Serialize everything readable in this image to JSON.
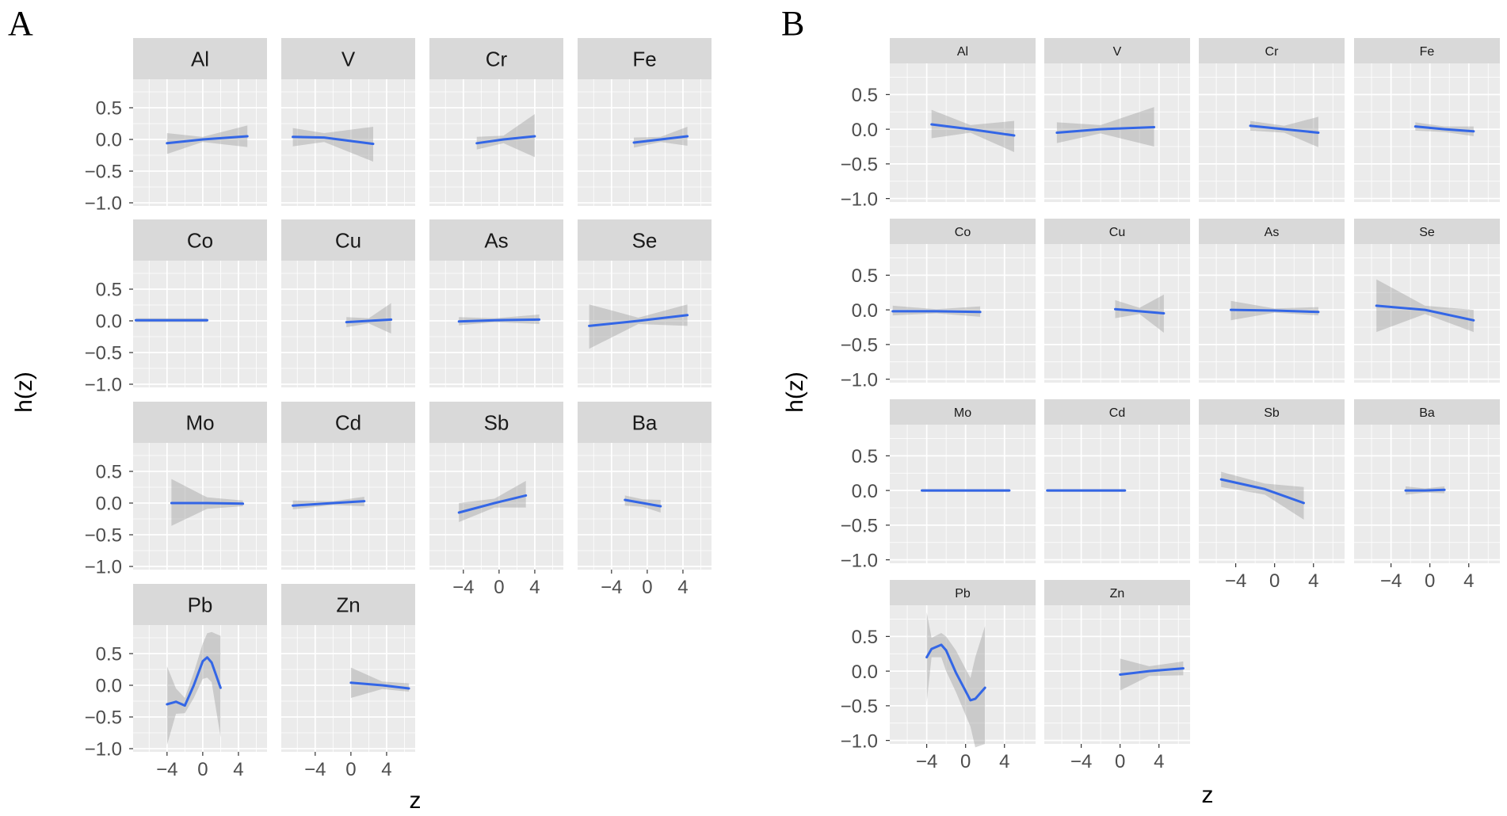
{
  "figure": {
    "panel_labels": [
      "A",
      "B"
    ],
    "y_axis_title": "h(z)",
    "x_axis_title": "z"
  },
  "chart_data": [
    {
      "type": "line",
      "panel": "A",
      "title": "",
      "xlabel": "z",
      "ylabel": "h(z)",
      "xlim": [
        -7.8,
        7.2
      ],
      "ylim": [
        -1.05,
        0.95
      ],
      "x_ticks": [
        -4,
        0,
        4
      ],
      "x_tick_labels": [
        "−4",
        "0",
        "4"
      ],
      "y_ticks": [
        0.5,
        0.0,
        -0.5,
        -1.0
      ],
      "y_tick_labels": [
        "0.5",
        "0.0",
        "−0.5",
        "−1.0"
      ],
      "grid": true,
      "facets": [
        {
          "label": "Al",
          "x": [
            -4.0,
            0.0,
            5.0
          ],
          "y": [
            -0.06,
            0.0,
            0.05
          ],
          "lower": [
            -0.23,
            -0.04,
            -0.12
          ],
          "upper": [
            0.1,
            0.04,
            0.22
          ]
        },
        {
          "label": "V",
          "x": [
            -6.5,
            -3.0,
            2.5
          ],
          "y": [
            0.04,
            0.03,
            -0.07
          ],
          "lower": [
            -0.11,
            -0.04,
            -0.35
          ],
          "upper": [
            0.18,
            0.1,
            0.2
          ]
        },
        {
          "label": "Cr",
          "x": [
            -2.5,
            0.5,
            4.0
          ],
          "y": [
            -0.06,
            0.0,
            0.05
          ],
          "lower": [
            -0.16,
            -0.06,
            -0.28
          ],
          "upper": [
            0.04,
            0.06,
            0.4
          ]
        },
        {
          "label": "Fe",
          "x": [
            -1.5,
            1.5,
            4.5
          ],
          "y": [
            -0.05,
            0.0,
            0.05
          ],
          "lower": [
            -0.13,
            -0.04,
            -0.1
          ],
          "upper": [
            0.03,
            0.04,
            0.2
          ]
        },
        {
          "label": "Co",
          "x": [
            -7.5,
            -3.0,
            0.5
          ],
          "y": [
            0.01,
            0.01,
            0.01
          ],
          "lower": [
            -0.02,
            -0.02,
            -0.02
          ],
          "upper": [
            0.04,
            0.04,
            0.04
          ]
        },
        {
          "label": "Cu",
          "x": [
            -0.5,
            2.0,
            4.5
          ],
          "y": [
            -0.02,
            0.0,
            0.02
          ],
          "lower": [
            -0.1,
            -0.04,
            -0.2
          ],
          "upper": [
            0.06,
            0.04,
            0.28
          ]
        },
        {
          "label": "As",
          "x": [
            -4.5,
            -0.5,
            4.5
          ],
          "y": [
            -0.01,
            0.01,
            0.02
          ],
          "lower": [
            -0.07,
            -0.02,
            -0.05
          ],
          "upper": [
            0.06,
            0.04,
            0.1
          ]
        },
        {
          "label": "Se",
          "x": [
            -6.5,
            -1.0,
            4.5
          ],
          "y": [
            -0.08,
            0.0,
            0.09
          ],
          "lower": [
            -0.44,
            -0.05,
            -0.08
          ],
          "upper": [
            0.26,
            0.05,
            0.26
          ]
        },
        {
          "label": "Mo",
          "x": [
            -3.5,
            0.5,
            4.5
          ],
          "y": [
            0.0,
            0.0,
            -0.01
          ],
          "lower": [
            -0.36,
            -0.09,
            -0.05
          ],
          "upper": [
            0.38,
            0.09,
            0.04
          ]
        },
        {
          "label": "Cd",
          "x": [
            -6.5,
            -2.0,
            1.5
          ],
          "y": [
            -0.04,
            0.0,
            0.03
          ],
          "lower": [
            -0.1,
            -0.03,
            -0.05
          ],
          "upper": [
            0.04,
            0.03,
            0.1
          ]
        },
        {
          "label": "Sb",
          "x": [
            -4.5,
            -0.5,
            3.0
          ],
          "y": [
            -0.15,
            0.0,
            0.12
          ],
          "lower": [
            -0.3,
            -0.07,
            -0.07
          ],
          "upper": [
            0.0,
            0.07,
            0.35
          ]
        },
        {
          "label": "Ba",
          "x": [
            -2.5,
            -0.5,
            1.5
          ],
          "y": [
            0.05,
            0.0,
            -0.05
          ],
          "lower": [
            -0.04,
            -0.06,
            -0.15
          ],
          "upper": [
            0.12,
            0.06,
            0.05
          ]
        },
        {
          "label": "Pb",
          "x": [
            -4.0,
            -3.0,
            -2.0,
            -1.0,
            0.0,
            0.5,
            1.0,
            2.0
          ],
          "y": [
            -0.3,
            -0.26,
            -0.32,
            0.0,
            0.38,
            0.44,
            0.36,
            -0.04
          ],
          "lower": [
            -0.94,
            -0.45,
            -0.44,
            -0.2,
            0.1,
            0.12,
            0.05,
            -0.82
          ],
          "upper": [
            0.3,
            -0.05,
            -0.2,
            0.2,
            0.66,
            0.82,
            0.84,
            0.78
          ]
        },
        {
          "label": "Zn",
          "x": [
            0.0,
            3.5,
            6.5
          ],
          "y": [
            0.04,
            0.0,
            -0.05
          ],
          "lower": [
            -0.2,
            -0.06,
            -0.1
          ],
          "upper": [
            0.28,
            0.06,
            0.03
          ]
        }
      ]
    },
    {
      "type": "line",
      "panel": "B",
      "title": "",
      "xlabel": "z",
      "ylabel": "h(z)",
      "xlim": [
        -7.8,
        7.2
      ],
      "ylim": [
        -1.05,
        0.95
      ],
      "x_ticks": [
        -4,
        0,
        4
      ],
      "x_tick_labels": [
        "−4",
        "0",
        "4"
      ],
      "y_ticks": [
        0.5,
        0.0,
        -0.5,
        -1.0
      ],
      "y_tick_labels": [
        "0.5",
        "0.0",
        "−0.5",
        "−1.0"
      ],
      "grid": true,
      "facets": [
        {
          "label": "Al",
          "x": [
            -3.5,
            0.5,
            5.0
          ],
          "y": [
            0.07,
            0.0,
            -0.09
          ],
          "lower": [
            -0.13,
            -0.05,
            -0.33
          ],
          "upper": [
            0.28,
            0.06,
            0.12
          ]
        },
        {
          "label": "V",
          "x": [
            -6.5,
            -2.0,
            3.5
          ],
          "y": [
            -0.05,
            0.0,
            0.03
          ],
          "lower": [
            -0.2,
            -0.06,
            -0.25
          ],
          "upper": [
            0.1,
            0.06,
            0.32
          ]
        },
        {
          "label": "Cr",
          "x": [
            -2.5,
            1.0,
            4.5
          ],
          "y": [
            0.05,
            0.0,
            -0.05
          ],
          "lower": [
            -0.02,
            -0.05,
            -0.26
          ],
          "upper": [
            0.12,
            0.05,
            0.18
          ]
        },
        {
          "label": "Fe",
          "x": [
            -1.5,
            1.5,
            4.5
          ],
          "y": [
            0.04,
            0.0,
            -0.03
          ],
          "lower": [
            -0.02,
            -0.04,
            -0.1
          ],
          "upper": [
            0.1,
            0.04,
            0.04
          ]
        },
        {
          "label": "Co",
          "x": [
            -7.5,
            -3.0,
            1.5
          ],
          "y": [
            -0.02,
            -0.02,
            -0.03
          ],
          "lower": [
            -0.08,
            -0.05,
            -0.1
          ],
          "upper": [
            0.06,
            0.01,
            0.05
          ]
        },
        {
          "label": "Cu",
          "x": [
            -0.5,
            2.0,
            4.5
          ],
          "y": [
            0.01,
            -0.02,
            -0.05
          ],
          "lower": [
            -0.12,
            -0.06,
            -0.33
          ],
          "upper": [
            0.14,
            0.03,
            0.22
          ]
        },
        {
          "label": "As",
          "x": [
            -4.5,
            0.0,
            4.5
          ],
          "y": [
            0.0,
            -0.01,
            -0.03
          ],
          "lower": [
            -0.15,
            -0.04,
            -0.08
          ],
          "upper": [
            0.13,
            0.02,
            0.04
          ]
        },
        {
          "label": "Se",
          "x": [
            -5.5,
            -0.5,
            4.5
          ],
          "y": [
            0.06,
            0.0,
            -0.15
          ],
          "lower": [
            -0.32,
            -0.06,
            -0.32
          ],
          "upper": [
            0.44,
            0.06,
            0.0
          ]
        },
        {
          "label": "Mo",
          "x": [
            -4.5,
            0.0,
            4.5
          ],
          "y": [
            0.0,
            0.0,
            0.0
          ],
          "lower": [
            -0.02,
            -0.02,
            -0.02
          ],
          "upper": [
            0.02,
            0.02,
            0.02
          ]
        },
        {
          "label": "Cd",
          "x": [
            -7.5,
            -3.0,
            0.5
          ],
          "y": [
            0.0,
            0.0,
            0.0
          ],
          "lower": [
            -0.02,
            -0.02,
            -0.02
          ],
          "upper": [
            0.02,
            0.02,
            0.02
          ]
        },
        {
          "label": "Sb",
          "x": [
            -5.5,
            -1.0,
            3.0
          ],
          "y": [
            0.16,
            0.02,
            -0.18
          ],
          "lower": [
            0.05,
            -0.06,
            -0.42
          ],
          "upper": [
            0.27,
            0.1,
            0.05
          ]
        },
        {
          "label": "Ba",
          "x": [
            -2.5,
            -0.5,
            1.5
          ],
          "y": [
            0.0,
            0.0,
            0.01
          ],
          "lower": [
            -0.06,
            -0.03,
            -0.04
          ],
          "upper": [
            0.06,
            0.03,
            0.06
          ]
        },
        {
          "label": "Pb",
          "x": [
            -4.0,
            -3.5,
            -2.5,
            -2.0,
            -1.0,
            0.5,
            1.0,
            2.0
          ],
          "y": [
            0.2,
            0.32,
            0.38,
            0.3,
            -0.02,
            -0.42,
            -0.4,
            -0.24
          ],
          "lower": [
            -0.45,
            0.2,
            0.2,
            0.0,
            -0.3,
            -0.8,
            -1.1,
            -1.05
          ],
          "upper": [
            0.85,
            0.48,
            0.55,
            0.5,
            0.3,
            -0.1,
            0.2,
            0.65
          ]
        },
        {
          "label": "Zn",
          "x": [
            0.0,
            3.0,
            6.5
          ],
          "y": [
            -0.05,
            0.0,
            0.04
          ],
          "lower": [
            -0.28,
            -0.07,
            -0.06
          ],
          "upper": [
            0.18,
            0.07,
            0.14
          ]
        }
      ]
    }
  ]
}
